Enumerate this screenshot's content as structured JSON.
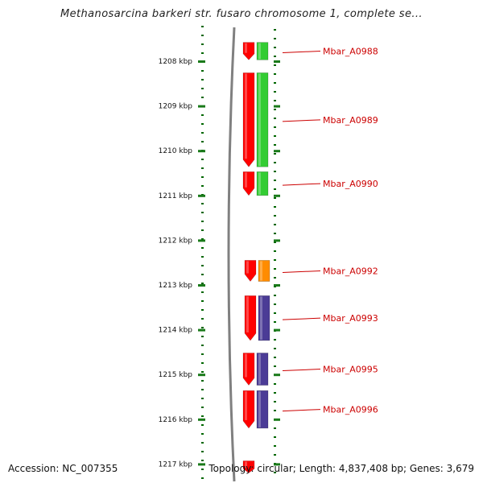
{
  "title": "Methanosarcina barkeri str. fusaro chromosome 1, complete se...",
  "accession": "Accession: NC_007355",
  "topology": "Topology: circular; Length: 4,837,408 bp; Genes: 3,679",
  "colors": {
    "forward_gene": "#ff0000",
    "green_gene": "#33cc33",
    "orange_gene": "#ff8c00",
    "purple_gene": "#4b3c96",
    "tick": "#006600",
    "scale_tick": "#1a7a1a",
    "label": "#cc0000",
    "backbone": "#808080"
  },
  "axis": {
    "start_kbp": 1207.5,
    "end_kbp": 1217.2,
    "ticks": [
      {
        "kbp": 1208,
        "label": "1208 kbp"
      },
      {
        "kbp": 1209,
        "label": "1209 kbp"
      },
      {
        "kbp": 1210,
        "label": "1210 kbp"
      },
      {
        "kbp": 1211,
        "label": "1211 kbp"
      },
      {
        "kbp": 1212,
        "label": "1212 kbp"
      },
      {
        "kbp": 1213,
        "label": "1213 kbp"
      },
      {
        "kbp": 1214,
        "label": "1214 kbp"
      },
      {
        "kbp": 1215,
        "label": "1215 kbp"
      },
      {
        "kbp": 1216,
        "label": "1216 kbp"
      },
      {
        "kbp": 1217,
        "label": "1217 kbp"
      }
    ]
  },
  "genes": [
    {
      "name": "Mbar_A0988",
      "start_kbp": 1207.58,
      "end_kbp": 1207.97,
      "track_color": "green_gene"
    },
    {
      "name": "Mbar_A0989",
      "start_kbp": 1208.26,
      "end_kbp": 1210.36,
      "track_color": "green_gene"
    },
    {
      "name": "Mbar_A0990",
      "start_kbp": 1210.47,
      "end_kbp": 1211.0,
      "track_color": "green_gene"
    },
    {
      "name": "Mbar_A0992",
      "start_kbp": 1212.45,
      "end_kbp": 1212.92,
      "track_color": "orange_gene"
    },
    {
      "name": "Mbar_A0993",
      "start_kbp": 1213.24,
      "end_kbp": 1214.24,
      "track_color": "purple_gene"
    },
    {
      "name": "Mbar_A0995",
      "start_kbp": 1214.52,
      "end_kbp": 1215.24,
      "track_color": "purple_gene"
    },
    {
      "name": "Mbar_A0996",
      "start_kbp": 1215.36,
      "end_kbp": 1216.2,
      "track_color": "purple_gene"
    },
    {
      "name": "",
      "start_kbp": 1216.93,
      "end_kbp": 1217.2,
      "track_color": ""
    }
  ]
}
